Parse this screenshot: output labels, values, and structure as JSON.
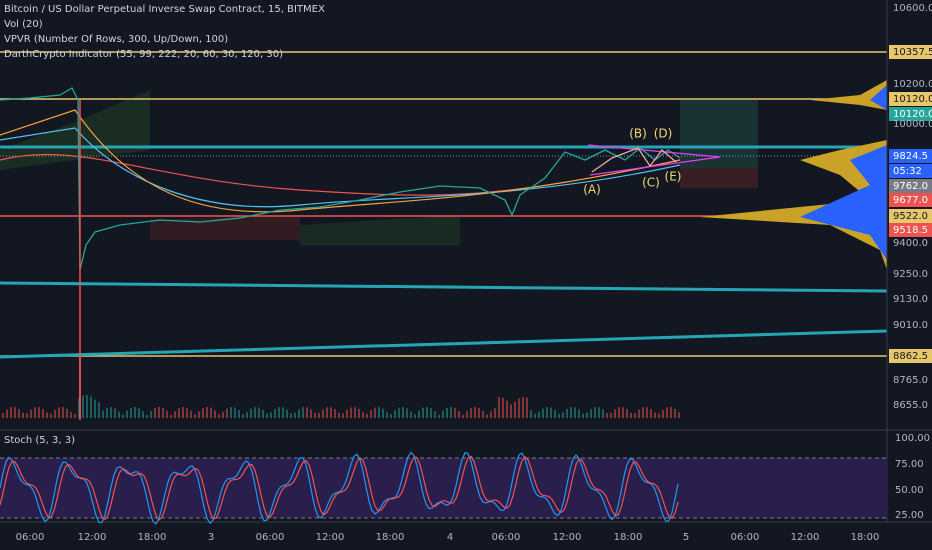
{
  "header": {
    "title": "Bitcoin / US Dollar Perpetual Inverse Swap Contract, 15, BITMEX",
    "indicators": [
      "Vol (20)",
      "VPVR (Number Of Rows, 300, Up/Down, 100)",
      "DarthCrypto Indicator (55, 99, 222, 20, 60, 30, 120, 30)"
    ]
  },
  "price_axis": {
    "labels": [
      "10600.0",
      "10357.5",
      "10200.0",
      "10120.0",
      "10120.0",
      "10000.0",
      "9824.5",
      "05:32",
      "9762.0",
      "9677.0",
      "9522.0",
      "9518.5",
      "9400.0",
      "9250.0",
      "9130.0",
      "9010.0",
      "8862.5",
      "8765.0",
      "8655.0"
    ]
  },
  "wave_labels": [
    "(A)",
    "(B)",
    "(C)",
    "(D)",
    "(E)"
  ],
  "stoch": {
    "title": "Stoch (5, 3, 3)",
    "axis_labels": [
      "100.00",
      "75.00",
      "50.00",
      "25.00"
    ]
  },
  "time_axis": {
    "labels": [
      "06:00",
      "12:00",
      "18:00",
      "3",
      "06:00",
      "12:00",
      "18:00",
      "4",
      "06:00",
      "12:00",
      "18:00",
      "5",
      "06:00",
      "12:00",
      "18:00"
    ]
  }
}
